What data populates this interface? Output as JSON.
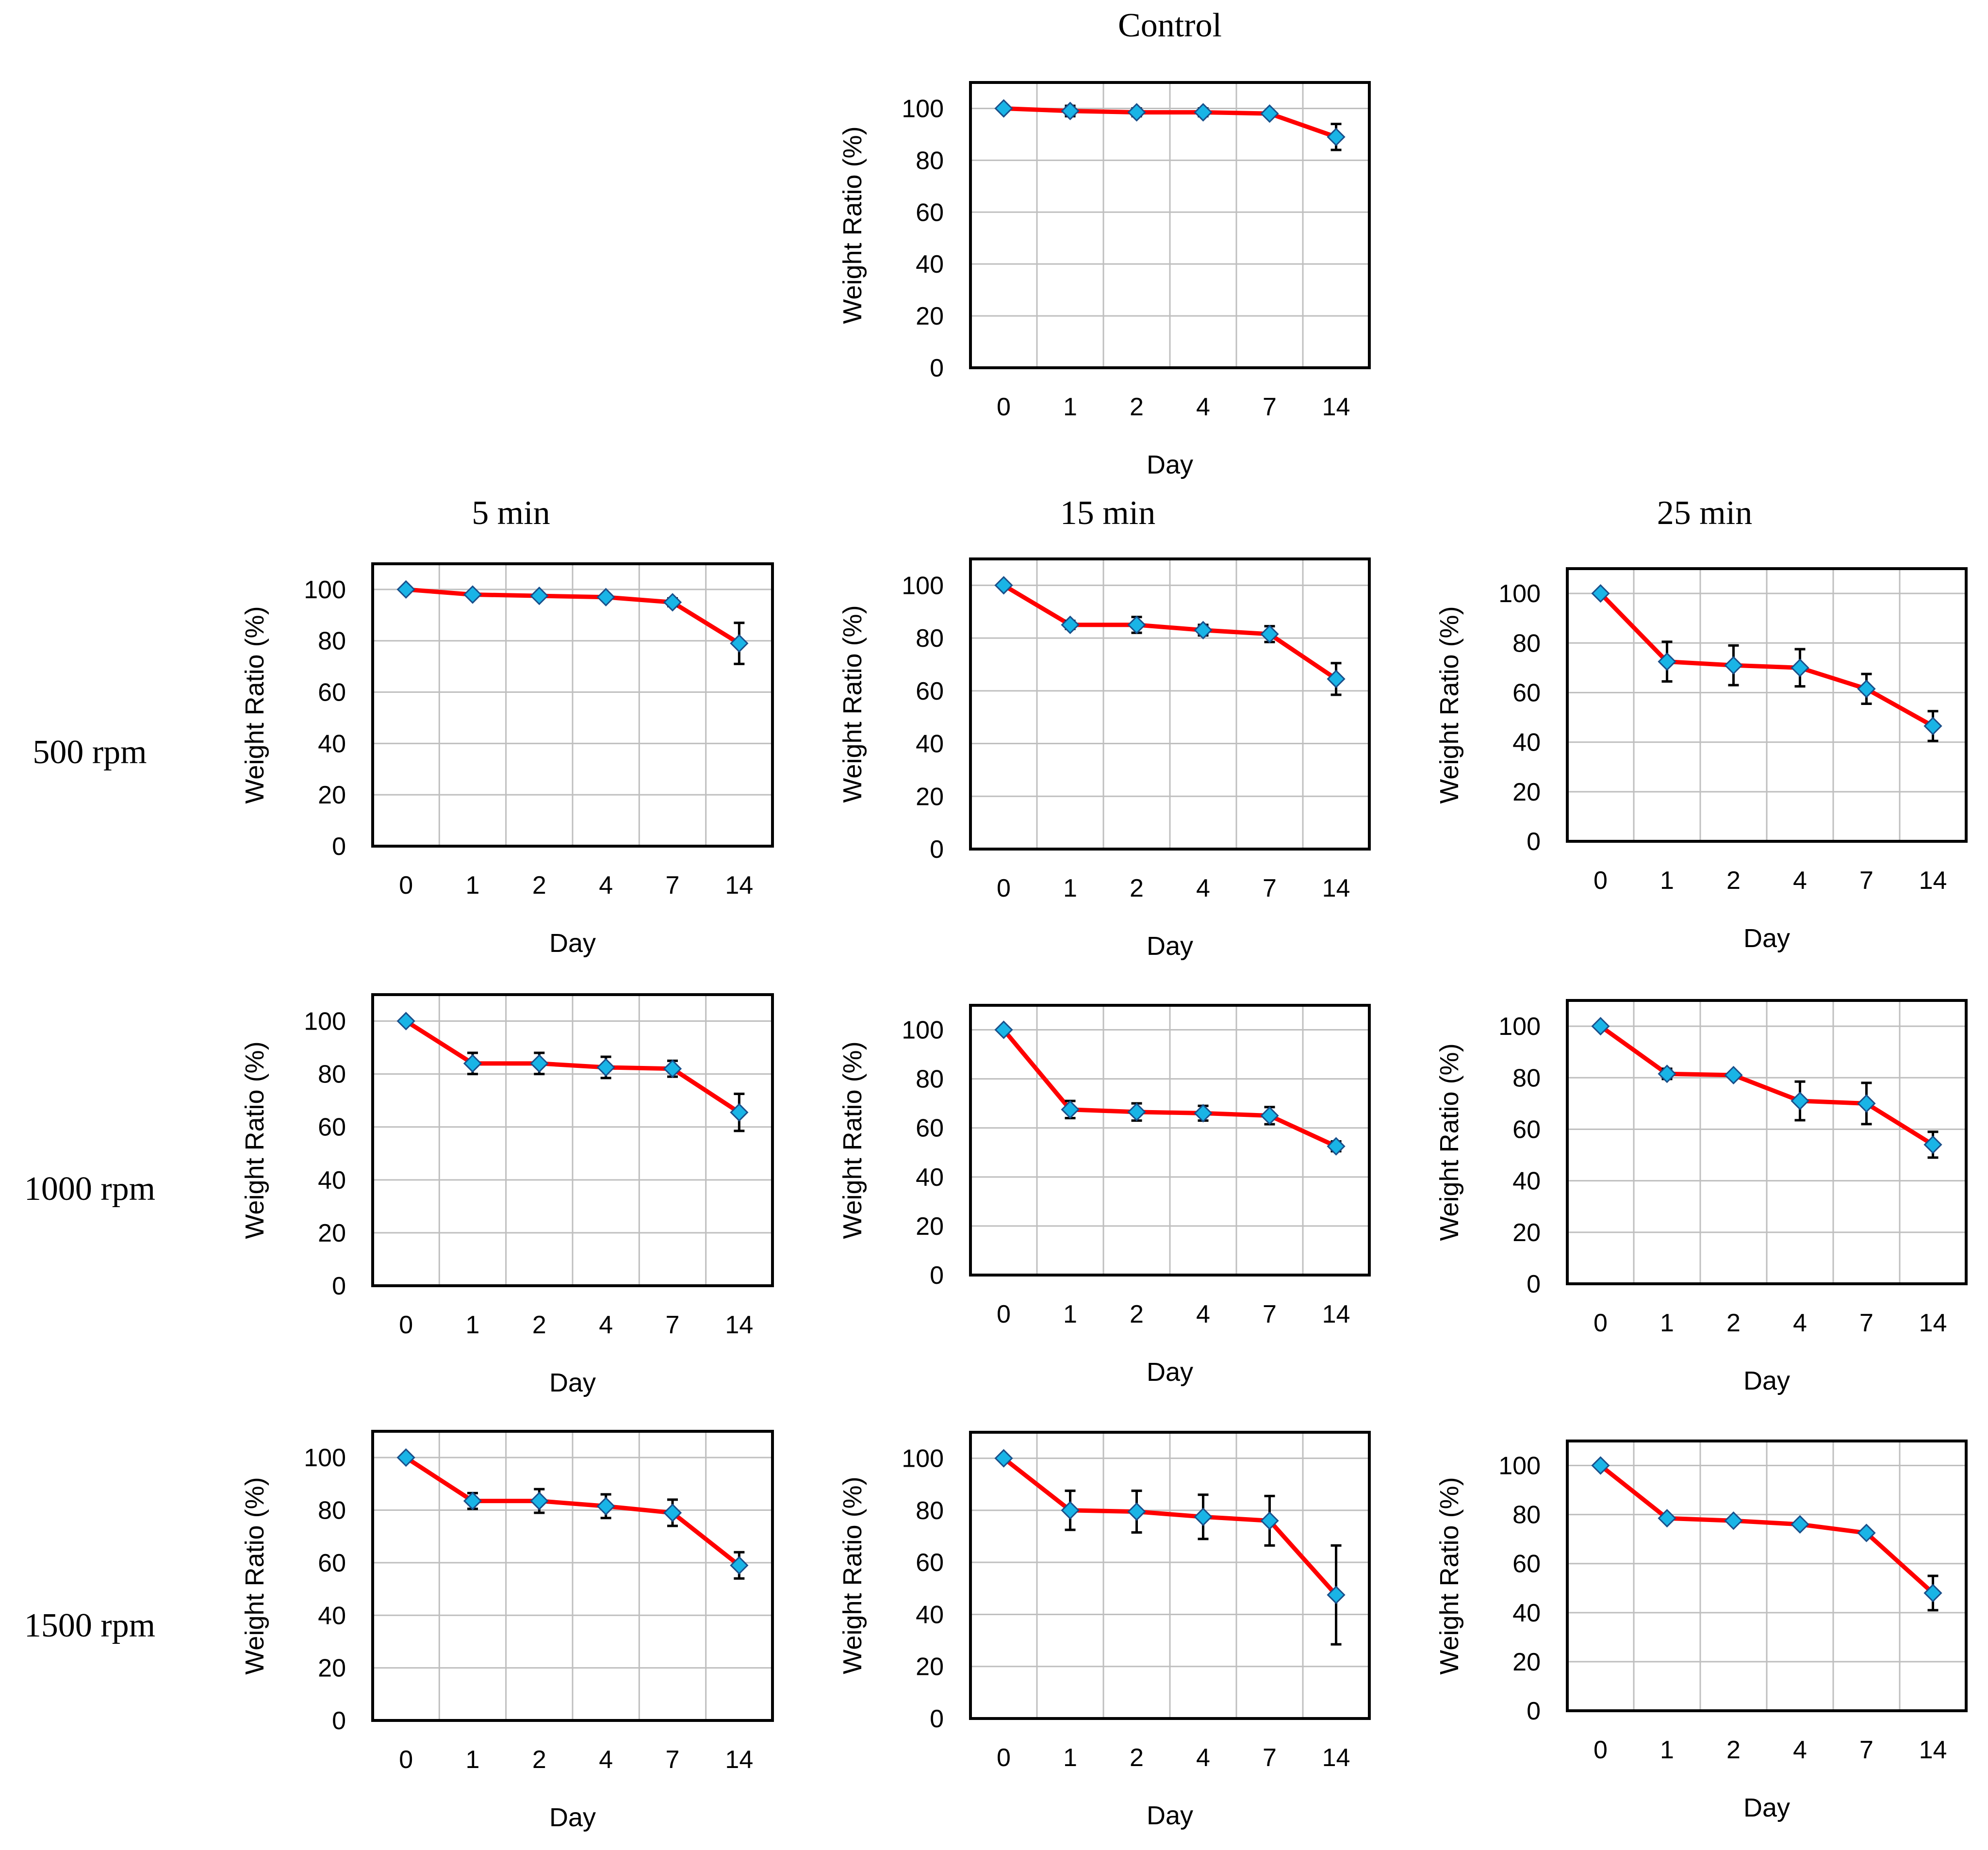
{
  "figure": {
    "column_headers": [
      "5 min",
      "15 min",
      "25 min"
    ],
    "row_headers": [
      "500 rpm",
      "1000 rpm",
      "1500 rpm"
    ]
  },
  "colors": {
    "line": "#ff0000",
    "marker_fill": "#19b4e6",
    "marker_edge": "#1a4f8a",
    "grid": "#bfbfbf",
    "error_bar": "#000000"
  },
  "chart_data": [
    {
      "id": "control",
      "type": "line",
      "title": "Control",
      "xlabel": "Day",
      "ylabel": "Weight Ratio (%)",
      "categories": [
        "0",
        "1",
        "2",
        "4",
        "7",
        "14"
      ],
      "ylim": [
        0,
        110
      ],
      "yticks": [
        0,
        20,
        40,
        60,
        80,
        100
      ],
      "grid": true,
      "series": [
        {
          "values": [
            100,
            99,
            98.5,
            98.5,
            98,
            89
          ],
          "errors": [
            0,
            2,
            1.5,
            1.5,
            1,
            5
          ]
        }
      ]
    },
    {
      "id": "500rpm-5min",
      "type": "line",
      "xlabel": "Day",
      "ylabel": "Weight Ratio (%)",
      "categories": [
        "0",
        "1",
        "2",
        "4",
        "7",
        "14"
      ],
      "ylim": [
        0,
        110
      ],
      "yticks": [
        0,
        20,
        40,
        60,
        80,
        100
      ],
      "grid": true,
      "series": [
        {
          "values": [
            100,
            98,
            97.5,
            97,
            95,
            79
          ],
          "errors": [
            0,
            1,
            1,
            1,
            1.5,
            8
          ]
        }
      ]
    },
    {
      "id": "500rpm-15min",
      "type": "line",
      "xlabel": "Day",
      "ylabel": "Weight Ratio (%)",
      "categories": [
        "0",
        "1",
        "2",
        "4",
        "7",
        "14"
      ],
      "ylim": [
        0,
        110
      ],
      "yticks": [
        0,
        20,
        40,
        60,
        80,
        100
      ],
      "grid": true,
      "series": [
        {
          "values": [
            100,
            85,
            85,
            83,
            81.5,
            64.5
          ],
          "errors": [
            0,
            1.5,
            3,
            2,
            3,
            6
          ]
        }
      ]
    },
    {
      "id": "500rpm-25min",
      "type": "line",
      "xlabel": "Day",
      "ylabel": "Weight Ratio (%)",
      "categories": [
        "0",
        "1",
        "2",
        "4",
        "7",
        "14"
      ],
      "ylim": [
        0,
        110
      ],
      "yticks": [
        0,
        20,
        40,
        60,
        80,
        100
      ],
      "grid": true,
      "series": [
        {
          "values": [
            100,
            72.5,
            71,
            70,
            61.5,
            46.5
          ],
          "errors": [
            0,
            8,
            8,
            7.5,
            6,
            6
          ]
        }
      ]
    },
    {
      "id": "1000rpm-5min",
      "type": "line",
      "xlabel": "Day",
      "ylabel": "Weight Ratio (%)",
      "categories": [
        "0",
        "1",
        "2",
        "4",
        "7",
        "14"
      ],
      "ylim": [
        0,
        110
      ],
      "yticks": [
        0,
        20,
        40,
        60,
        80,
        100
      ],
      "grid": true,
      "series": [
        {
          "values": [
            100,
            84,
            84,
            82.5,
            82,
            65.5
          ],
          "errors": [
            0,
            4,
            4,
            4,
            3,
            7
          ]
        }
      ]
    },
    {
      "id": "1000rpm-15min",
      "type": "line",
      "xlabel": "Day",
      "ylabel": "Weight Ratio (%)",
      "categories": [
        "0",
        "1",
        "2",
        "4",
        "7",
        "14"
      ],
      "ylim": [
        0,
        110
      ],
      "yticks": [
        0,
        20,
        40,
        60,
        80,
        100
      ],
      "grid": true,
      "series": [
        {
          "values": [
            100,
            67.5,
            66.5,
            66,
            65,
            52.5
          ],
          "errors": [
            0,
            3.5,
            3.5,
            3,
            3.5,
            2
          ]
        }
      ]
    },
    {
      "id": "1000rpm-25min",
      "type": "line",
      "xlabel": "Day",
      "ylabel": "Weight Ratio (%)",
      "categories": [
        "0",
        "1",
        "2",
        "4",
        "7",
        "14"
      ],
      "ylim": [
        0,
        110
      ],
      "yticks": [
        0,
        20,
        40,
        60,
        80,
        100
      ],
      "grid": true,
      "series": [
        {
          "values": [
            100,
            81.5,
            81,
            71,
            70,
            54
          ],
          "errors": [
            0,
            2,
            1,
            7.5,
            8,
            5
          ]
        }
      ]
    },
    {
      "id": "1500rpm-5min",
      "type": "line",
      "xlabel": "Day",
      "ylabel": "Weight Ratio (%)",
      "categories": [
        "0",
        "1",
        "2",
        "4",
        "7",
        "14"
      ],
      "ylim": [
        0,
        110
      ],
      "yticks": [
        0,
        20,
        40,
        60,
        80,
        100
      ],
      "grid": true,
      "series": [
        {
          "values": [
            100,
            83.5,
            83.5,
            81.5,
            79,
            59
          ],
          "errors": [
            0,
            3,
            4.5,
            4.5,
            5,
            5
          ]
        }
      ]
    },
    {
      "id": "1500rpm-15min",
      "type": "line",
      "xlabel": "Day",
      "ylabel": "Weight Ratio (%)",
      "categories": [
        "0",
        "1",
        "2",
        "4",
        "7",
        "14"
      ],
      "ylim": [
        0,
        110
      ],
      "yticks": [
        0,
        20,
        40,
        60,
        80,
        100
      ],
      "grid": true,
      "series": [
        {
          "values": [
            100,
            80,
            79.5,
            77.5,
            76,
            47.5
          ],
          "errors": [
            0,
            7.5,
            8,
            8.5,
            9.5,
            19
          ]
        }
      ]
    },
    {
      "id": "1500rpm-25min",
      "type": "line",
      "xlabel": "Day",
      "ylabel": "Weight Ratio (%)",
      "categories": [
        "0",
        "1",
        "2",
        "4",
        "7",
        "14"
      ],
      "ylim": [
        0,
        110
      ],
      "yticks": [
        0,
        20,
        40,
        60,
        80,
        100
      ],
      "grid": true,
      "series": [
        {
          "values": [
            100,
            78.5,
            77.5,
            76,
            72.5,
            48
          ],
          "errors": [
            0,
            1,
            1,
            1,
            1,
            7
          ]
        }
      ]
    }
  ]
}
